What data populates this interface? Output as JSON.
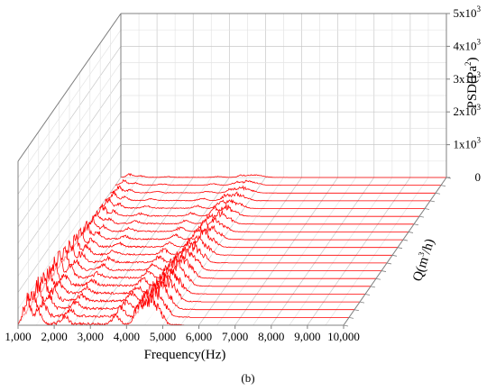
{
  "caption": "(b)",
  "chart_data": {
    "type": "3d-waterfall",
    "series_color": "#ff0000",
    "xlabel": "Frequency(Hz)",
    "x_ticks": [
      "1,000",
      "2,000",
      "3,000",
      "4,000",
      "5,000",
      "6,000",
      "7,000",
      "8,000",
      "9,000",
      "10,000"
    ],
    "xlim": [
      1000,
      10000
    ],
    "zlabel": "PSD(Pa²)",
    "z_ticks": [
      {
        "value": 0,
        "base": "0",
        "exp": ""
      },
      {
        "value": 1000,
        "base": "1x10",
        "exp": "3"
      },
      {
        "value": 2000,
        "base": "2x10",
        "exp": "3"
      },
      {
        "value": 3000,
        "base": "3x10",
        "exp": "3"
      },
      {
        "value": 4000,
        "base": "4x10",
        "exp": "3"
      },
      {
        "value": 5000,
        "base": "5x10",
        "exp": "3"
      }
    ],
    "zlim": [
      0,
      5000
    ],
    "ylabel": "Q(m³/h)",
    "y_tick_count": 20,
    "grid": true,
    "series_count": 20,
    "peak_frequencies_hz": [
      1250,
      1550,
      2300,
      3700,
      4350,
      4650,
      4900
    ],
    "peak_psd_front": [
      1150,
      550,
      280,
      350,
      850,
      1020,
      480
    ]
  }
}
